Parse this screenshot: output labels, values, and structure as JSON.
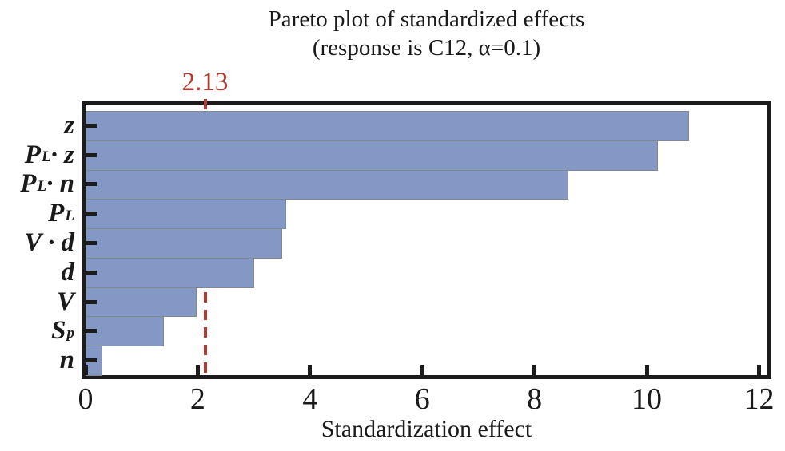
{
  "title": {
    "line1": "Pareto plot of standardized effects",
    "line2": "(response is C12, α=0.1)"
  },
  "reference_line": {
    "value": 2.13,
    "label": "2.13",
    "color": "#b23a31"
  },
  "x_axis": {
    "label": "Standardization effect",
    "min": 0,
    "max": 12,
    "ticks": [
      0,
      2,
      4,
      6,
      8,
      10,
      12
    ]
  },
  "chart_data": {
    "type": "bar",
    "orientation": "horizontal",
    "title": "Pareto plot of standardized effects (response is C12, α=0.1)",
    "xlabel": "Standardization effect",
    "categories": [
      "z",
      "P_L · z",
      "P_L · n",
      "P_L",
      "V · d",
      "d",
      "V",
      "S_p",
      "n"
    ],
    "values": [
      10.75,
      10.2,
      8.6,
      3.58,
      3.5,
      3.0,
      1.98,
      1.4,
      0.3
    ],
    "xlim": [
      0,
      12
    ],
    "grid": false,
    "legend": "none",
    "reference_line": 2.13,
    "reference_line_label": "2.13",
    "colors": {
      "bar_fill": "#8498c5",
      "bar_border": "#83878f",
      "frame": "#1c1c1c",
      "reference": "#b23a31",
      "text": "#1a1a1a"
    }
  }
}
